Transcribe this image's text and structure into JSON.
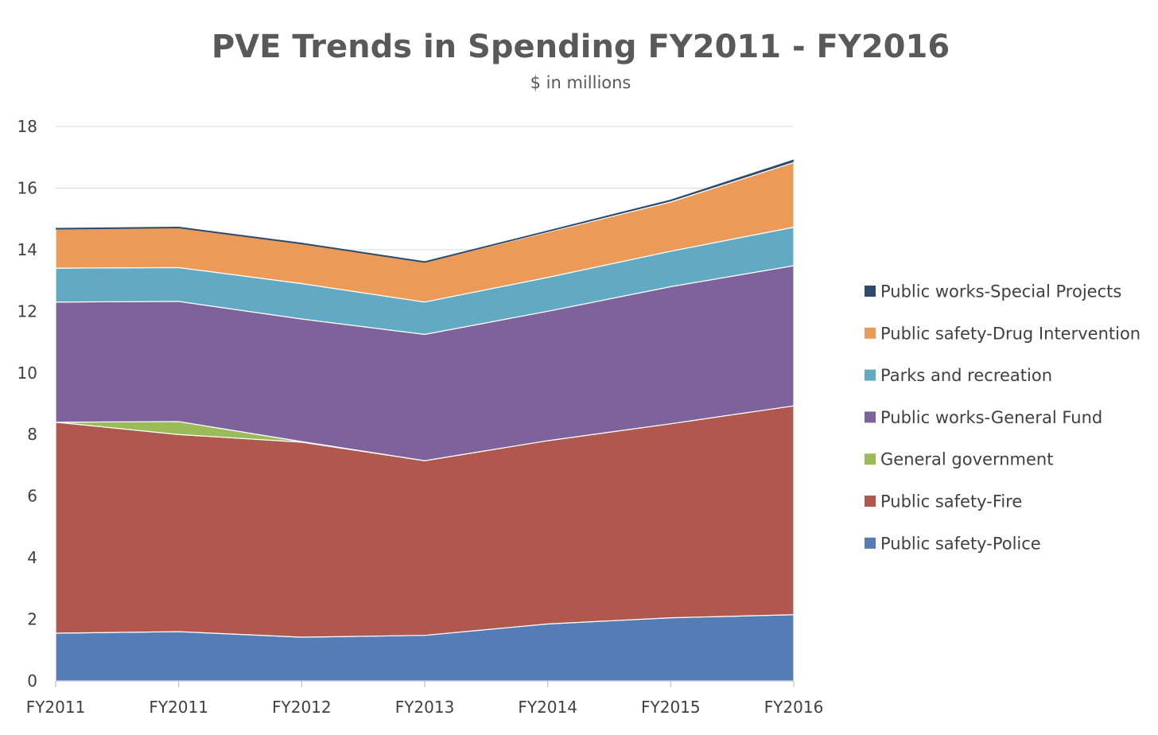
{
  "chart_data": {
    "type": "area",
    "stacked": true,
    "title": "PVE Trends in Spending FY2011 - FY2016",
    "subtitle": "$ in millions",
    "xlabel": "",
    "ylabel": "",
    "categories": [
      "FY2011",
      "FY2011",
      "FY2012",
      "FY2013",
      "FY2014",
      "FY2015",
      "FY2016"
    ],
    "ylim": [
      0,
      18
    ],
    "yticks": [
      0,
      2,
      4,
      6,
      8,
      10,
      12,
      14,
      16,
      18
    ],
    "grid": true,
    "legend_position": "right",
    "series": [
      {
        "name": "Public safety-Police",
        "color": "#567CB6",
        "values": [
          1.55,
          1.6,
          1.42,
          1.48,
          1.85,
          2.05,
          2.15
        ]
      },
      {
        "name": "Public safety-Fire",
        "color": "#B0574E",
        "values": [
          6.85,
          6.4,
          6.33,
          5.67,
          5.95,
          6.3,
          6.78
        ]
      },
      {
        "name": "General government",
        "color": "#9BBB59",
        "values": [
          0.0,
          0.42,
          0.02,
          0.0,
          0.0,
          0.0,
          0.0
        ]
      },
      {
        "name": "Public works-General Fund",
        "color": "#7D629C",
        "values": [
          3.9,
          3.9,
          3.98,
          4.1,
          4.2,
          4.45,
          4.55
        ]
      },
      {
        "name": "Parks and recreation",
        "color": "#62A9C3",
        "values": [
          1.1,
          1.1,
          1.15,
          1.05,
          1.1,
          1.15,
          1.25
        ]
      },
      {
        "name": "Public safety-Drug Intervention",
        "color": "#EB9B57",
        "values": [
          1.28,
          1.3,
          1.3,
          1.3,
          1.47,
          1.6,
          2.1
        ]
      },
      {
        "name": "Public works-Special Projects",
        "color": "#2C4A6E",
        "values": [
          0.0,
          0.0,
          0.0,
          0.0,
          0.03,
          0.05,
          0.07
        ]
      }
    ]
  }
}
